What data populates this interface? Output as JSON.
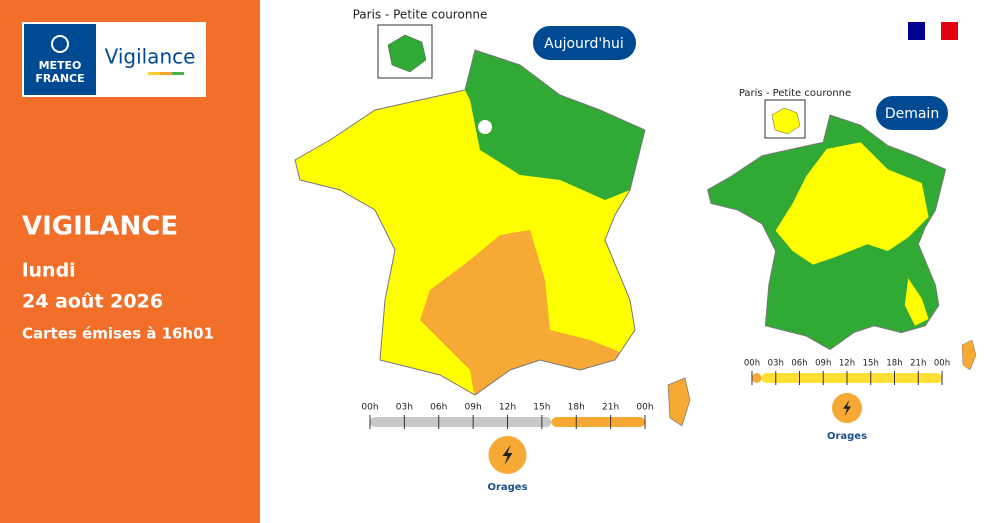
{
  "logo": {
    "brand_lines": [
      "METEO",
      "FRANCE"
    ],
    "product": "Vigilance"
  },
  "sidebar": {
    "title": "VIGILANCE",
    "day": "lundi",
    "date": "24 août 2026",
    "issued": "Cartes émises à 16h01"
  },
  "maps": [
    {
      "label": "Aujourd'hui",
      "inset_label": "Paris - Petite couronne",
      "timeline": [
        "00h",
        "03h",
        "06h",
        "09h",
        "12h",
        "15h",
        "18h",
        "21h",
        "00h"
      ],
      "phenomenon": "Orages"
    },
    {
      "label": "Demain",
      "inset_label": "Paris - Petite couronne",
      "timeline": [
        "00h",
        "03h",
        "06h",
        "09h",
        "12h",
        "15h",
        "18h",
        "21h",
        "00h"
      ],
      "phenomenon": "Orages"
    }
  ]
}
